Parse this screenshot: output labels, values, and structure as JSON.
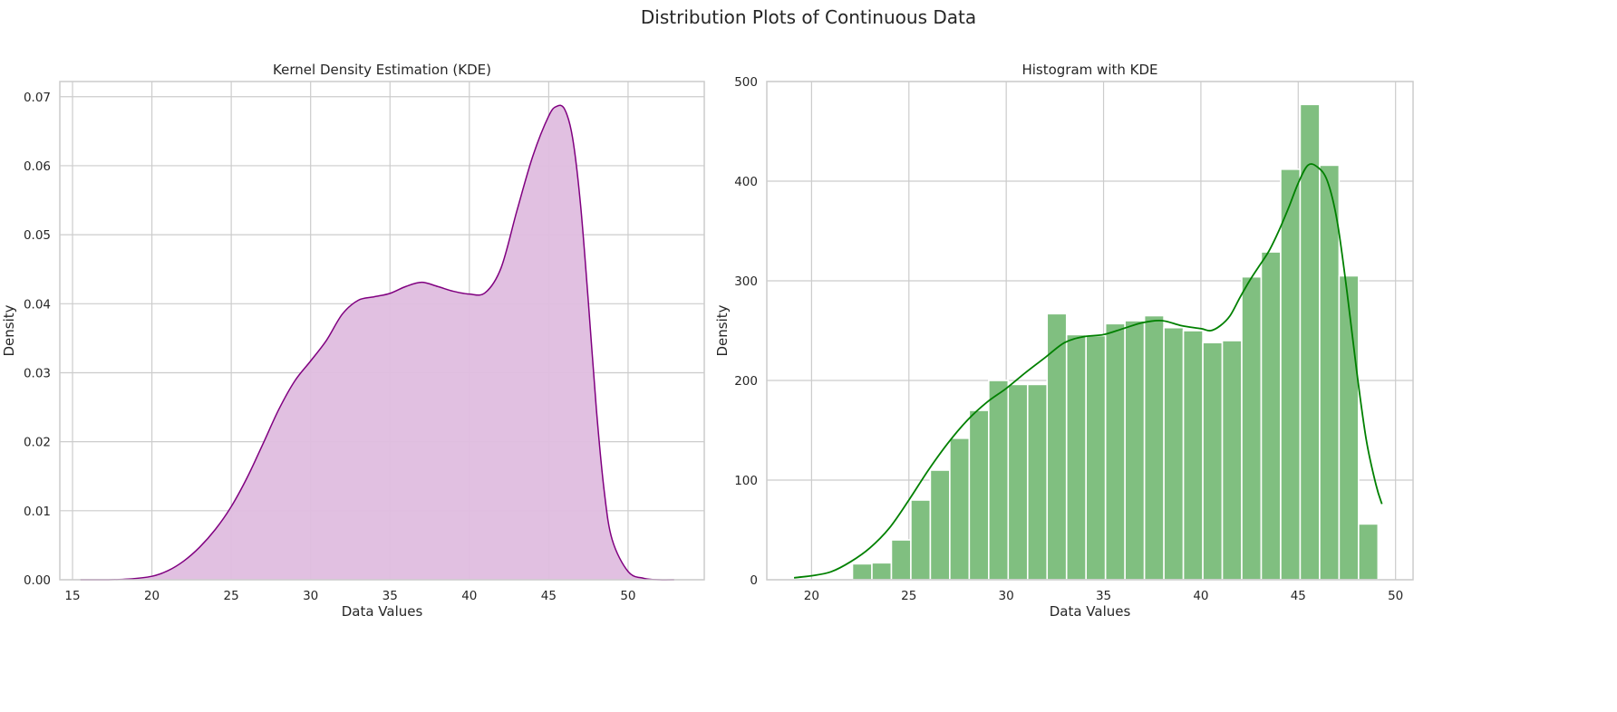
{
  "suptitle": "Distribution Plots of Continuous Data",
  "chart_data": [
    {
      "type": "area",
      "title": "Kernel Density Estimation (KDE)",
      "xlabel": "Data Values",
      "ylabel": "Density",
      "xlim": [
        14.2,
        54.8
      ],
      "ylim": [
        0,
        0.0722
      ],
      "xticks": [
        15,
        20,
        25,
        30,
        35,
        40,
        45,
        50
      ],
      "yticks": [
        0.0,
        0.01,
        0.02,
        0.03,
        0.04,
        0.05,
        0.06,
        0.07
      ],
      "ytick_labels": [
        "0.00",
        "0.01",
        "0.02",
        "0.03",
        "0.04",
        "0.05",
        "0.06",
        "0.07"
      ],
      "grid": true,
      "line_color": "#800080",
      "fill_color": "#dfbddf",
      "x": [
        15.5,
        17,
        18.5,
        20,
        21,
        22,
        23,
        24,
        25,
        26,
        27,
        28,
        29,
        30,
        31,
        32,
        33,
        34,
        35,
        36,
        37,
        38,
        39,
        40,
        41,
        42,
        43,
        44,
        45,
        45.5,
        46,
        46.5,
        47,
        47.5,
        48,
        48.5,
        49,
        50,
        51,
        52,
        52.9
      ],
      "y": [
        0.0,
        0.0,
        0.0001,
        0.0005,
        0.0013,
        0.0027,
        0.0047,
        0.0073,
        0.0106,
        0.0148,
        0.0197,
        0.0247,
        0.0288,
        0.0317,
        0.0347,
        0.0385,
        0.0405,
        0.041,
        0.0415,
        0.0425,
        0.0431,
        0.0425,
        0.0418,
        0.0414,
        0.0416,
        0.0452,
        0.0535,
        0.0614,
        0.0672,
        0.0686,
        0.0682,
        0.0641,
        0.0545,
        0.0402,
        0.0248,
        0.0128,
        0.0058,
        0.0012,
        0.0002,
        0.0,
        0.0
      ]
    },
    {
      "type": "bar",
      "title": "Histogram with KDE",
      "xlabel": "Data Values",
      "ylabel": "Density",
      "xlim": [
        17.7,
        50.9
      ],
      "ylim": [
        0,
        500
      ],
      "xticks": [
        20,
        25,
        30,
        35,
        40,
        45,
        50
      ],
      "yticks": [
        0,
        100,
        200,
        300,
        400,
        500
      ],
      "grid": true,
      "bar_color": "#80bf80",
      "line_color": "#008000",
      "bin_edges": [
        22.1,
        23.1,
        24.1,
        25.1,
        26.1,
        27.1,
        28.1,
        29.1,
        30.1,
        31.1,
        32.1,
        33.1,
        34.1,
        35.1,
        36.1,
        37.1,
        38.1,
        39.1,
        40.1,
        41.1,
        42.1,
        43.1,
        44.1,
        45.1,
        46.1,
        47.1,
        48.1,
        49.1
      ],
      "values": [
        16,
        17,
        40,
        80,
        110,
        142,
        170,
        200,
        196,
        196,
        267,
        246,
        245,
        257,
        260,
        265,
        253,
        250,
        238,
        240,
        304,
        329,
        412,
        477,
        416,
        305,
        56
      ],
      "kde_x": [
        19.1,
        20,
        21,
        22,
        23,
        24,
        25,
        26,
        27,
        28,
        29,
        30,
        31,
        32,
        33,
        34,
        35,
        36,
        37,
        38,
        39,
        40,
        40.5,
        41,
        41.5,
        42,
        42.5,
        43,
        43.5,
        44,
        44.5,
        45,
        45.5,
        46,
        46.5,
        47,
        47.5,
        48,
        48.5,
        49,
        49.3
      ],
      "kde_y": [
        2,
        4,
        8,
        18,
        32,
        52,
        80,
        110,
        137,
        160,
        178,
        192,
        208,
        223,
        238,
        244,
        246,
        252,
        258,
        260,
        255,
        252,
        250,
        255,
        265,
        283,
        300,
        315,
        330,
        350,
        373,
        398,
        416,
        414,
        400,
        360,
        290,
        210,
        140,
        95,
        76
      ]
    }
  ]
}
